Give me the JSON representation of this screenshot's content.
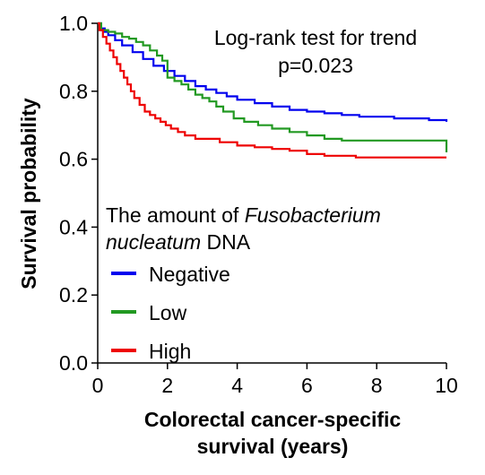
{
  "chart_data": {
    "type": "line",
    "subtype": "kaplan-meier step curves",
    "title": "",
    "xlabel_line1": "Colorectal cancer-specific",
    "xlabel_line2": "survival (years)",
    "ylabel": "Survival probability",
    "xlim": [
      0,
      10
    ],
    "ylim": [
      0,
      1.0
    ],
    "x_ticks": [
      "0",
      "2",
      "4",
      "6",
      "8",
      "10"
    ],
    "y_ticks": [
      "0.0",
      "0.2",
      "0.4",
      "0.6",
      "0.8",
      "1.0"
    ],
    "grid": false,
    "annotation_line1": "Log-rank test for trend",
    "annotation_line2": "p=0.023",
    "legend": {
      "position": "bottom-left",
      "title_part1": "The amount of ",
      "title_italic1": "Fusobacterium",
      "title_italic2": "nucleatum",
      "title_part2": " DNA"
    },
    "series": [
      {
        "name": "Negative",
        "color": "#0000ee",
        "x": [
          0,
          0.1,
          0.2,
          0.3,
          0.5,
          0.7,
          1.0,
          1.3,
          1.6,
          1.9,
          2.2,
          2.5,
          2.8,
          3.1,
          3.4,
          3.7,
          4.0,
          4.5,
          5.0,
          5.5,
          6.0,
          6.5,
          7.0,
          7.5,
          8.0,
          8.5,
          9.0,
          9.5,
          10.0
        ],
        "y": [
          1.0,
          0.985,
          0.975,
          0.965,
          0.95,
          0.935,
          0.915,
          0.895,
          0.875,
          0.86,
          0.845,
          0.83,
          0.815,
          0.805,
          0.795,
          0.785,
          0.775,
          0.765,
          0.755,
          0.745,
          0.74,
          0.735,
          0.73,
          0.725,
          0.725,
          0.72,
          0.72,
          0.715,
          0.71
        ]
      },
      {
        "name": "Low",
        "color": "#229922",
        "x": [
          0,
          0.1,
          0.3,
          0.5,
          0.7,
          0.9,
          1.1,
          1.3,
          1.5,
          1.7,
          1.85,
          2.0,
          2.2,
          2.4,
          2.6,
          2.8,
          3.0,
          3.2,
          3.4,
          3.6,
          3.9,
          4.2,
          4.6,
          5.0,
          5.5,
          6.0,
          6.5,
          7.0,
          7.5,
          8.0,
          9.0,
          9.9,
          10.0
        ],
        "y": [
          1.0,
          0.98,
          0.975,
          0.97,
          0.96,
          0.955,
          0.945,
          0.935,
          0.92,
          0.905,
          0.89,
          0.84,
          0.83,
          0.82,
          0.805,
          0.79,
          0.78,
          0.77,
          0.755,
          0.74,
          0.72,
          0.71,
          0.7,
          0.69,
          0.68,
          0.67,
          0.66,
          0.655,
          0.655,
          0.655,
          0.655,
          0.655,
          0.62
        ]
      },
      {
        "name": "High",
        "color": "#ee0000",
        "x": [
          0,
          0.05,
          0.15,
          0.25,
          0.35,
          0.45,
          0.55,
          0.65,
          0.75,
          0.85,
          0.95,
          1.05,
          1.2,
          1.35,
          1.5,
          1.65,
          1.8,
          1.95,
          2.1,
          2.3,
          2.5,
          2.8,
          3.1,
          3.5,
          4.0,
          4.5,
          5.0,
          5.5,
          6.0,
          6.5,
          7.4,
          8.0,
          9.0,
          10.0
        ],
        "y": [
          1.0,
          0.98,
          0.96,
          0.94,
          0.92,
          0.9,
          0.88,
          0.86,
          0.84,
          0.82,
          0.8,
          0.78,
          0.76,
          0.74,
          0.73,
          0.72,
          0.71,
          0.7,
          0.69,
          0.68,
          0.67,
          0.66,
          0.66,
          0.65,
          0.64,
          0.635,
          0.63,
          0.625,
          0.615,
          0.61,
          0.605,
          0.605,
          0.605,
          0.605
        ]
      }
    ]
  }
}
